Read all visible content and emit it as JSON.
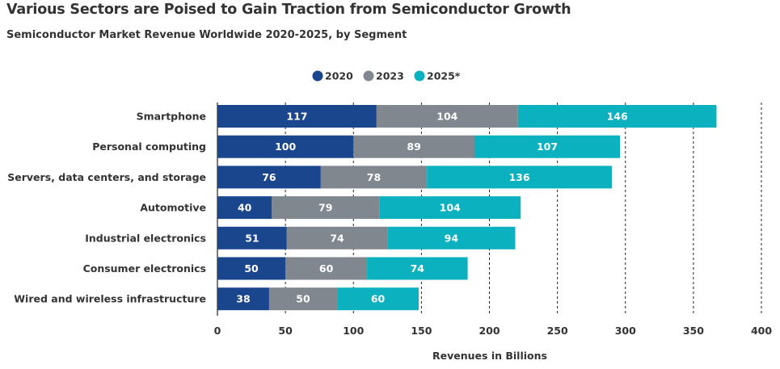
{
  "chart_data": {
    "type": "bar",
    "orientation": "horizontal",
    "stacked": true,
    "title": "Various Sectors are Poised to Gain Traction from Semiconductor Growth",
    "subtitle": "Semiconductor Market Revenue Worldwide 2020-2025, by Segment",
    "xlabel": "Revenues in Billions",
    "ylabel": "",
    "xlim": [
      0,
      400
    ],
    "xticks": [
      0,
      50,
      100,
      150,
      200,
      250,
      300,
      350,
      400
    ],
    "grid": "vertical dashed",
    "legend_position": "top-center",
    "categories": [
      "Smartphone",
      "Personal computing",
      "Servers, data centers, and storage",
      "Automotive",
      "Industrial electronics",
      "Consumer electronics",
      "Wired and wireless infrastructure"
    ],
    "series": [
      {
        "name": "2020",
        "color": "#1a468e",
        "values": [
          117,
          100,
          76,
          40,
          51,
          50,
          38
        ]
      },
      {
        "name": "2023",
        "color": "#80878e",
        "values": [
          104,
          89,
          78,
          79,
          74,
          60,
          50
        ]
      },
      {
        "name": "2025*",
        "color": "#0bb1bf",
        "values": [
          146,
          107,
          136,
          104,
          94,
          74,
          60
        ]
      }
    ]
  }
}
